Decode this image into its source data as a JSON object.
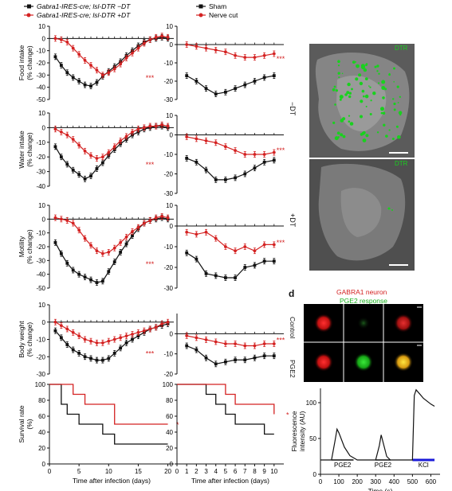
{
  "legend": {
    "left_black": "Gabra1-IRES-cre; lsl-DTR −DT",
    "left_red": "Gabra1-IRES-cre; lsl-DTR +DT",
    "right_black": "Sham",
    "right_red": "Nerve cut"
  },
  "colors": {
    "black_series": "#111111",
    "red_series": "#d42222",
    "dtr_green": "#19d11e",
    "kcl_bar": "#1a1ad8"
  },
  "chart_data": [
    {
      "id": "food-left",
      "type": "line",
      "ylabel": "Food intake (% change)",
      "ylim": [
        -50,
        10
      ],
      "yticks": [
        10,
        0,
        -10,
        -20,
        -30,
        -40,
        -50
      ],
      "xlim": [
        0,
        21
      ],
      "significance": "***",
      "x": [
        1,
        2,
        3,
        4,
        5,
        6,
        7,
        8,
        9,
        10,
        11,
        12,
        13,
        14,
        15,
        16,
        17,
        18,
        19,
        20
      ],
      "series": [
        {
          "color": "black",
          "values": [
            -15,
            -22,
            -28,
            -32,
            -35,
            -38,
            -39,
            -36,
            -31,
            -27,
            -23,
            -19,
            -14,
            -10,
            -6,
            -3,
            -1,
            0,
            1,
            0
          ]
        },
        {
          "color": "red",
          "values": [
            0,
            -1,
            -3,
            -8,
            -13,
            -18,
            -22,
            -26,
            -30,
            -28,
            -25,
            -21,
            -16,
            -12,
            -8,
            -4,
            -1,
            1,
            2,
            1
          ]
        }
      ]
    },
    {
      "id": "food-right",
      "type": "line",
      "ylim": [
        -30,
        10
      ],
      "yticks": [
        10,
        0,
        -10,
        -20,
        -30
      ],
      "xlim": [
        0,
        11
      ],
      "significance": "***",
      "x": [
        1,
        2,
        3,
        4,
        5,
        6,
        7,
        8,
        9,
        10
      ],
      "series": [
        {
          "color": "black",
          "values": [
            -17,
            -20,
            -24,
            -27,
            -26,
            -24,
            -22,
            -20,
            -18,
            -17
          ]
        },
        {
          "color": "red",
          "values": [
            0,
            -1,
            -2,
            -3,
            -4,
            -6,
            -7,
            -7,
            -6,
            -5
          ]
        }
      ]
    },
    {
      "id": "water-left",
      "type": "line",
      "ylabel": "Water intake (% change)",
      "ylim": [
        -40,
        10
      ],
      "yticks": [
        10,
        0,
        -10,
        -20,
        -30,
        -40
      ],
      "xlim": [
        0,
        21
      ],
      "significance": "***",
      "x": [
        1,
        2,
        3,
        4,
        5,
        6,
        7,
        8,
        9,
        10,
        11,
        12,
        13,
        14,
        15,
        16,
        17,
        18,
        19,
        20
      ],
      "series": [
        {
          "color": "black",
          "values": [
            -13,
            -20,
            -25,
            -29,
            -32,
            -35,
            -33,
            -28,
            -24,
            -19,
            -15,
            -11,
            -8,
            -5,
            -3,
            -1,
            0,
            1,
            1,
            0
          ]
        },
        {
          "color": "red",
          "values": [
            -1,
            -3,
            -5,
            -8,
            -12,
            -16,
            -19,
            -21,
            -20,
            -17,
            -13,
            -9,
            -6,
            -3,
            -1,
            0,
            1,
            1,
            2,
            1
          ]
        }
      ]
    },
    {
      "id": "water-right",
      "type": "line",
      "ylim": [
        -30,
        10
      ],
      "yticks": [
        10,
        0,
        -10,
        -20,
        -30
      ],
      "xlim": [
        0,
        11
      ],
      "significance": "***",
      "x": [
        1,
        2,
        3,
        4,
        5,
        6,
        7,
        8,
        9,
        10
      ],
      "series": [
        {
          "color": "black",
          "values": [
            -12,
            -14,
            -18,
            -23,
            -23,
            -22,
            -20,
            -17,
            -14,
            -13
          ]
        },
        {
          "color": "red",
          "values": [
            -1,
            -2,
            -3,
            -4,
            -6,
            -8,
            -10,
            -10,
            -10,
            -9
          ]
        }
      ]
    },
    {
      "id": "motility-left",
      "type": "line",
      "ylabel": "Motility (% change)",
      "ylim": [
        -50,
        10
      ],
      "yticks": [
        10,
        0,
        -10,
        -20,
        -30,
        -40,
        -50
      ],
      "xlim": [
        0,
        21
      ],
      "significance": "***",
      "x": [
        1,
        2,
        3,
        4,
        5,
        6,
        7,
        8,
        9,
        10,
        11,
        12,
        13,
        14,
        15,
        16,
        17,
        18,
        19,
        20
      ],
      "series": [
        {
          "color": "black",
          "values": [
            -17,
            -25,
            -32,
            -37,
            -40,
            -42,
            -44,
            -46,
            -45,
            -38,
            -31,
            -24,
            -18,
            -12,
            -7,
            -3,
            -1,
            0,
            1,
            0
          ]
        },
        {
          "color": "red",
          "values": [
            1,
            0,
            -1,
            -3,
            -8,
            -14,
            -19,
            -23,
            -25,
            -24,
            -21,
            -17,
            -13,
            -9,
            -6,
            -3,
            -1,
            1,
            2,
            1
          ]
        }
      ]
    },
    {
      "id": "motility-right",
      "type": "line",
      "ylim": [
        -30,
        10
      ],
      "yticks": [
        10,
        0,
        -10,
        -20,
        -30
      ],
      "xlim": [
        0,
        11
      ],
      "significance": "***",
      "x": [
        1,
        2,
        3,
        4,
        5,
        6,
        7,
        8,
        9,
        10
      ],
      "series": [
        {
          "color": "black",
          "values": [
            -13,
            -16,
            -23,
            -24,
            -25,
            -25,
            -20,
            -19,
            -17,
            -17
          ]
        },
        {
          "color": "red",
          "values": [
            -3,
            -4,
            -3,
            -6,
            -10,
            -12,
            -10,
            -12,
            -9,
            -9
          ]
        }
      ]
    },
    {
      "id": "bodyweight-left",
      "type": "line",
      "ylabel": "Body weight (% change)",
      "ylim": [
        -30,
        10
      ],
      "yticks": [
        10,
        0,
        -10,
        -20,
        -30
      ],
      "xlim": [
        0,
        21
      ],
      "significance": "***",
      "x": [
        1,
        2,
        3,
        4,
        5,
        6,
        7,
        8,
        9,
        10,
        11,
        12,
        13,
        14,
        15,
        16,
        17,
        18,
        19,
        20
      ],
      "series": [
        {
          "color": "black",
          "values": [
            -5,
            -9,
            -13,
            -16,
            -18,
            -20,
            -21,
            -22,
            -22,
            -21,
            -18,
            -15,
            -12,
            -10,
            -8,
            -6,
            -4,
            -3,
            -2,
            -1
          ]
        },
        {
          "color": "red",
          "values": [
            0,
            -2,
            -4,
            -6,
            -8,
            -10,
            -11,
            -12,
            -12,
            -11,
            -10,
            -9,
            -8,
            -7,
            -6,
            -5,
            -4,
            -3,
            -1,
            0
          ]
        }
      ]
    },
    {
      "id": "bodyweight-right",
      "type": "line",
      "ylim": [
        -20,
        10
      ],
      "yticks": [
        0,
        -10,
        -20
      ],
      "xlim": [
        0,
        11
      ],
      "significance": "***",
      "x": [
        1,
        2,
        3,
        4,
        5,
        6,
        7,
        8,
        9,
        10
      ],
      "series": [
        {
          "color": "black",
          "values": [
            -6,
            -8,
            -12,
            -15,
            -14,
            -13,
            -13,
            -12,
            -11,
            -11
          ]
        },
        {
          "color": "red",
          "values": [
            -1,
            -2,
            -3,
            -4,
            -5,
            -5,
            -6,
            -6,
            -5,
            -5
          ]
        }
      ]
    },
    {
      "id": "survival-left",
      "type": "step",
      "ylabel": "Survival rate (%)",
      "xlabel": "Time after infection (days)",
      "ylim": [
        0,
        100
      ],
      "yticks": [
        0,
        20,
        40,
        60,
        80,
        100
      ],
      "xlim": [
        0,
        21
      ],
      "xticks": [
        0,
        5,
        10,
        15,
        20
      ],
      "significance": "*",
      "series": [
        {
          "color": "black",
          "x": [
            0,
            2,
            3,
            5,
            7,
            9,
            11,
            20
          ],
          "values": [
            100,
            75,
            62.5,
            50,
            50,
            37.5,
            25,
            25
          ]
        },
        {
          "color": "red",
          "x": [
            0,
            4,
            6,
            8,
            11,
            20
          ],
          "values": [
            100,
            87.5,
            75,
            75,
            50,
            50
          ]
        }
      ]
    },
    {
      "id": "survival-right",
      "type": "step",
      "xlabel": "Time after infection (days)",
      "ylim": [
        0,
        100
      ],
      "yticks": [
        0,
        20,
        40,
        60,
        80,
        100
      ],
      "xlim": [
        0,
        11
      ],
      "xticks": [
        0,
        1,
        2,
        3,
        4,
        5,
        6,
        7,
        8,
        9,
        10
      ],
      "significance": "*",
      "series": [
        {
          "color": "black",
          "x": [
            0,
            3,
            4,
            5,
            6,
            8,
            9,
            10
          ],
          "values": [
            100,
            87.5,
            75,
            62.5,
            50,
            50,
            37.5,
            37.5
          ]
        },
        {
          "color": "red",
          "x": [
            0,
            5,
            6,
            10
          ],
          "values": [
            100,
            87.5,
            75,
            62.5
          ]
        }
      ]
    },
    {
      "id": "fluorescence",
      "type": "line",
      "ylabel": "Fluorescence intensity (AU)",
      "xlabel": "Time (s)",
      "ylim": [
        0,
        120
      ],
      "yticks": [
        0,
        50,
        100
      ],
      "xlim": [
        0,
        650
      ],
      "xticks": [
        0,
        100,
        200,
        300,
        400,
        500,
        600
      ],
      "stimuli": [
        {
          "label": "PGE2",
          "start": 60,
          "end": 180
        },
        {
          "label": "PGE2",
          "start": 300,
          "end": 380
        },
        {
          "label": "KCl",
          "start": 500,
          "end": 620
        }
      ],
      "x": [
        0,
        60,
        80,
        90,
        100,
        130,
        160,
        200,
        250,
        300,
        320,
        330,
        340,
        360,
        380,
        400,
        450,
        500,
        510,
        520,
        540,
        560,
        580,
        600,
        620
      ],
      "values": [
        20,
        20,
        48,
        63,
        58,
        38,
        26,
        20,
        20,
        20,
        40,
        55,
        45,
        25,
        20,
        20,
        20,
        20,
        110,
        118,
        112,
        106,
        102,
        98,
        95
      ]
    }
  ],
  "microscopy": {
    "row_top_label": "−DT",
    "row_bottom_label": "+DT",
    "stain": "DTR"
  },
  "panel_d": {
    "letter": "d",
    "title_red": "GABRA1 neuron",
    "title_green": "PGE2 response",
    "row_labels": [
      "Control",
      "PGE2"
    ]
  }
}
